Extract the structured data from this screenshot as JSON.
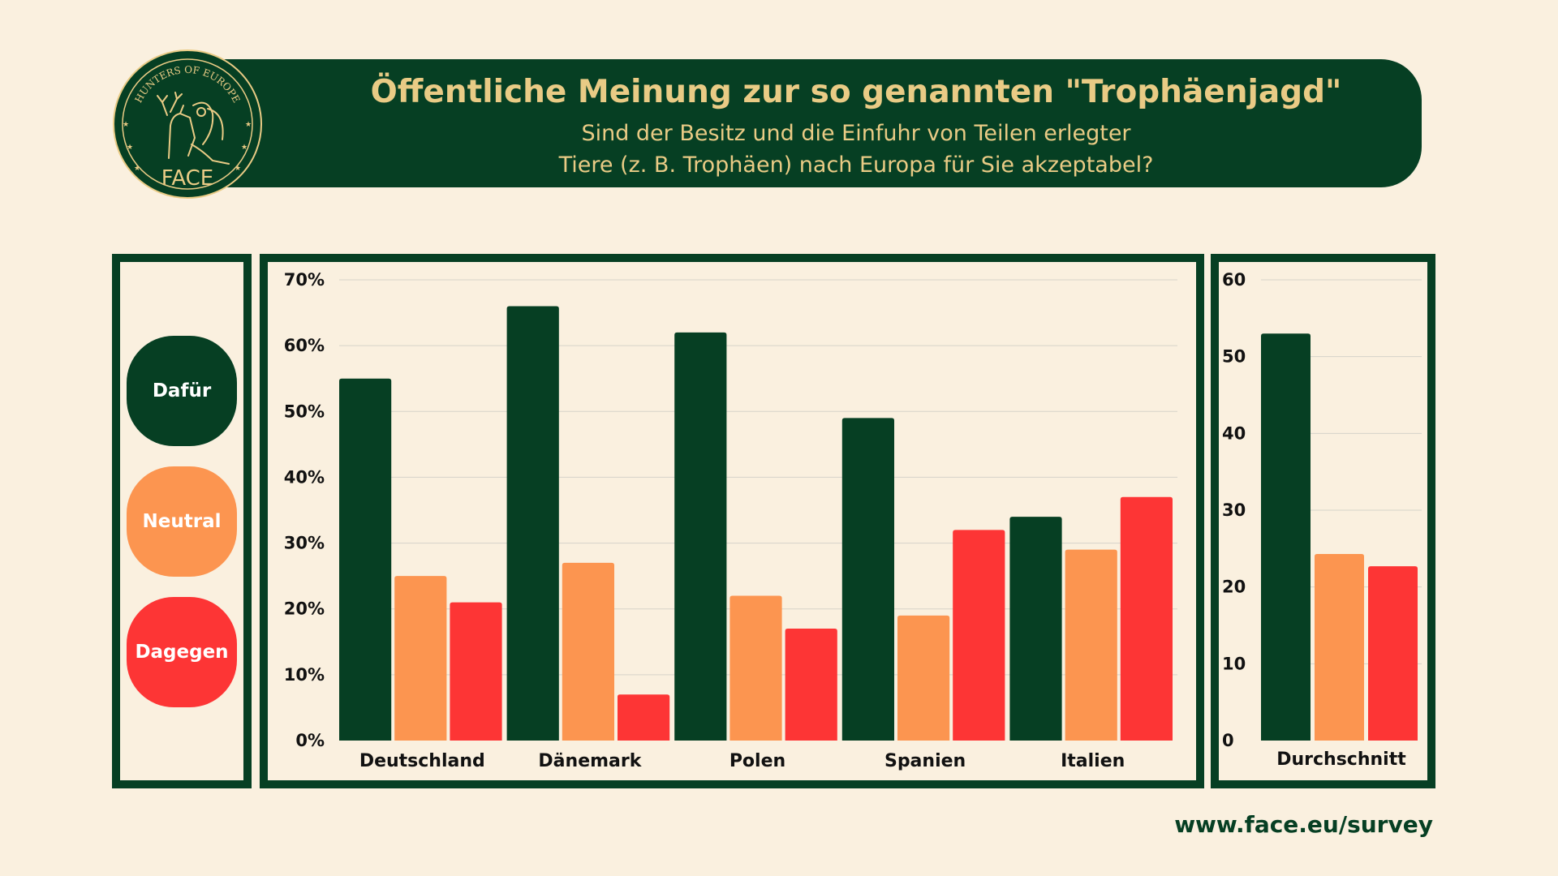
{
  "header": {
    "title": "Öffentliche Meinung zur so genannten \"Trophäenjagd\"",
    "subtitle_line1": "Sind der Besitz und die Einfuhr von Teilen erlegter",
    "subtitle_line2": "Tiere (z. B. Trophäen) nach Europa für Sie akzeptabel?"
  },
  "logo": {
    "ring_text": "HUNTERS OF EUROPE",
    "name": "FACE",
    "icon": "hunter-and-stag-emblem-icon"
  },
  "colors": {
    "background": "#faf0df",
    "dark_green": "#063f23",
    "gold": "#e9cb85",
    "orange": "#fc9550",
    "red": "#fd3535"
  },
  "legend": {
    "items": [
      {
        "label": "Dafür",
        "color": "#063f23"
      },
      {
        "label": "Neutral",
        "color": "#fc9550"
      },
      {
        "label": "Dagegen",
        "color": "#fd3535"
      }
    ]
  },
  "chart_data": [
    {
      "type": "bar",
      "categories": [
        "Deutschland",
        "Dänemark",
        "Polen",
        "Spanien",
        "Italien"
      ],
      "series": [
        {
          "name": "Dafür",
          "color": "#063f23",
          "values": [
            55,
            66,
            62,
            49,
            34
          ]
        },
        {
          "name": "Neutral",
          "color": "#fc9550",
          "values": [
            25,
            27,
            22,
            19,
            29
          ]
        },
        {
          "name": "Dagegen",
          "color": "#fd3535",
          "values": [
            21,
            7,
            17,
            32,
            37
          ]
        }
      ],
      "ylim": [
        0,
        70
      ],
      "yticks": [
        "0%",
        "10%",
        "20%",
        "30%",
        "40%",
        "50%",
        "60%",
        "70%"
      ],
      "grid": true
    },
    {
      "type": "bar",
      "categories": [
        "Durchschnitt"
      ],
      "series": [
        {
          "name": "Dafür",
          "color": "#063f23",
          "values": [
            53
          ]
        },
        {
          "name": "Neutral",
          "color": "#fc9550",
          "values": [
            24.3
          ]
        },
        {
          "name": "Dagegen",
          "color": "#fd3535",
          "values": [
            22.7
          ]
        }
      ],
      "ylim": [
        0,
        60
      ],
      "yticks": [
        "0",
        "10",
        "20",
        "30",
        "40",
        "50",
        "60"
      ],
      "grid": true
    }
  ],
  "footer": {
    "url": "www.face.eu/survey"
  }
}
